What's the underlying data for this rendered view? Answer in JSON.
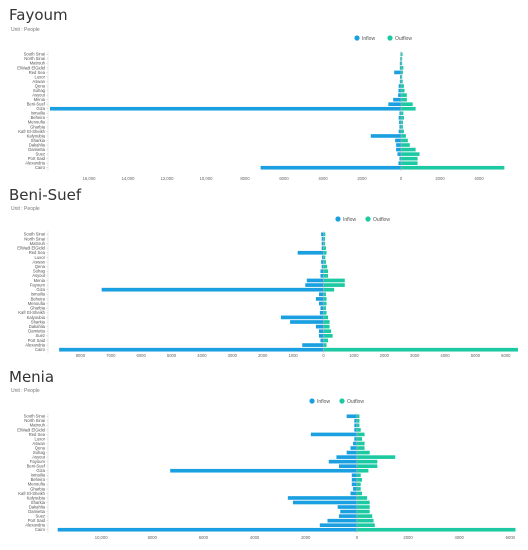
{
  "colors": {
    "inflow": "#1aa0e0",
    "outflow": "#1cc9a2"
  },
  "chart_data": [
    {
      "type": "bar",
      "title": "Fayoum",
      "unit_text": "Unit : People",
      "categories": [
        "South Sinai",
        "North Sinai",
        "Matrouh",
        "ElWadi ElGidid",
        "Red Sea",
        "Luxor",
        "Aswan",
        "Qena",
        "Suhag",
        "Asyout",
        "Menia",
        "Beni-Suef",
        "Giza",
        "Ismailia",
        "Beheira",
        "Menoufia",
        "Gharbia",
        "Kafr El-Sheikh",
        "Kalyoubia",
        "Sharkia",
        "Dakahlia",
        "Damietta",
        "Suez",
        "Port Said",
        "Alexandria",
        "Cairo"
      ],
      "series": [
        {
          "name": "Inflow",
          "values": [
            -30,
            -40,
            -60,
            -60,
            -350,
            -50,
            -60,
            -120,
            -130,
            -150,
            -400,
            -650,
            -18000,
            -80,
            -120,
            -100,
            -80,
            -120,
            -1550,
            -300,
            -250,
            -250,
            -180,
            -80,
            -130,
            -7200
          ]
        },
        {
          "name": "Outflow",
          "values": [
            80,
            60,
            60,
            120,
            100,
            60,
            90,
            150,
            180,
            300,
            300,
            600,
            750,
            120,
            150,
            100,
            100,
            150,
            250,
            350,
            450,
            750,
            950,
            850,
            850,
            5300
          ]
        }
      ],
      "x_tick_labels": [
        "16,000",
        "14,000",
        "12,000",
        "10,000",
        "8000",
        "6000",
        "4000",
        "2000",
        "0",
        "2000",
        "4000"
      ],
      "xlim": [
        -18000,
        6000
      ],
      "legend_position": "top-center"
    },
    {
      "type": "bar",
      "title": "Beni-Suef",
      "unit_text": "Unit : People",
      "categories": [
        "South Sinai",
        "North Sinai",
        "Matrouh",
        "ElWadi ElGidid",
        "Red Sea",
        "Luxor",
        "Aswan",
        "Qena",
        "Suhag",
        "Asyout",
        "Menia",
        "Fayoum",
        "Giza",
        "Ismailia",
        "Beheira",
        "Menoufia",
        "Gharbia",
        "Kafr El-Sheikh",
        "Kalyoubia",
        "Sharkia",
        "Dakahlia",
        "Damietta",
        "Suez",
        "Port Said",
        "Alexandria",
        "Cairo"
      ],
      "series": [
        {
          "name": "Inflow",
          "values": [
            -80,
            -60,
            -60,
            -60,
            -850,
            -50,
            -80,
            -60,
            -100,
            -100,
            -550,
            -600,
            -7300,
            -150,
            -250,
            -150,
            -100,
            -120,
            -1400,
            -1100,
            -250,
            -150,
            -150,
            -100,
            -700,
            -8700
          ]
        },
        {
          "name": "Outflow",
          "values": [
            60,
            50,
            50,
            80,
            100,
            60,
            80,
            120,
            150,
            150,
            700,
            700,
            350,
            80,
            100,
            100,
            80,
            100,
            150,
            200,
            200,
            250,
            300,
            150,
            100,
            6400
          ]
        }
      ],
      "x_tick_labels": [
        "8000",
        "7000",
        "6000",
        "5000",
        "4000",
        "3000",
        "2000",
        "1000",
        "0",
        "1000",
        "2000",
        "3000",
        "4000",
        "5000",
        "6000"
      ],
      "xlim": [
        -9000,
        6400
      ],
      "legend_position": "top-center"
    },
    {
      "type": "bar",
      "title": "Menia",
      "unit_text": "Unit : People",
      "categories": [
        "South Sinai",
        "North Sinai",
        "Matrouh",
        "ElWadi ElGidid",
        "Red Sea",
        "Luxor",
        "Aswan",
        "Qena",
        "Suhag",
        "Asyout",
        "Fayoum",
        "Beni-Suef",
        "Giza",
        "Ismailia",
        "Beheira",
        "Menoufia",
        "Gharbia",
        "Kafr El-Sheikh",
        "Kalyoubia",
        "Sharkia",
        "Dakahlia",
        "Damietta",
        "Suez",
        "Port Said",
        "Alexandria",
        "Cairo"
      ],
      "series": [
        {
          "name": "Inflow",
          "values": [
            -400,
            -100,
            -100,
            -100,
            -1800,
            -100,
            -150,
            -250,
            -400,
            -800,
            -1100,
            -700,
            -7300,
            -200,
            -200,
            -200,
            -150,
            -250,
            -2700,
            -2500,
            -750,
            -650,
            -700,
            -1150,
            -1450,
            -11700
          ]
        },
        {
          "name": "Outflow",
          "values": [
            100,
            100,
            100,
            150,
            300,
            200,
            300,
            300,
            500,
            1500,
            800,
            800,
            450,
            150,
            200,
            150,
            150,
            200,
            400,
            500,
            500,
            500,
            600,
            650,
            700,
            6200
          ]
        }
      ],
      "x_tick_labels": [
        "10,000",
        "8000",
        "6000",
        "4000",
        "2000",
        "0",
        "2000",
        "4000",
        "6000"
      ],
      "xlim": [
        -12000,
        6300
      ],
      "legend_position": "top-center"
    }
  ]
}
